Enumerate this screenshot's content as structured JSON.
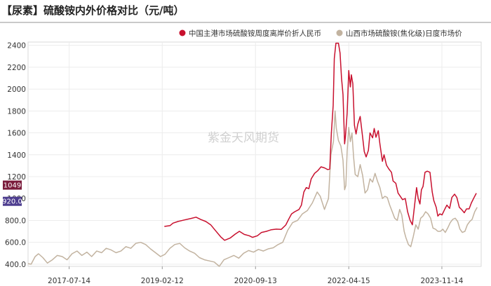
{
  "title": "【尿素】硫酸铵内外价格对比（元/吨）",
  "watermark": "紫金天风期货",
  "chart_data": {
    "type": "line",
    "title": "【尿素】硫酸铵内外价格对比（元/吨）",
    "xlabel": "",
    "ylabel": "",
    "ylim": [
      380,
      2430
    ],
    "yticks": [
      400,
      600,
      800,
      1000,
      1200,
      1400,
      1600,
      1800,
      2000,
      2200,
      2400
    ],
    "ytick_labels": [
      "400.0",
      "600.0",
      "800.0",
      "1000",
      "1200",
      "1400",
      "1600",
      "1800",
      "2000",
      "2200",
      "2400"
    ],
    "xlim": [
      "2016-11-01",
      "2024-07-15"
    ],
    "xticks": [
      "2017-07-14",
      "2019-02-12",
      "2020-09-13",
      "2022-04-15",
      "2023-11-14"
    ],
    "grid": true,
    "legend_position": "top-right",
    "last_value_labels": [
      {
        "series": "中国主港市场硫酸铵周度离岸价折人民币",
        "value": "1049",
        "color": "#7b1c3c"
      },
      {
        "series": "山西市场硫酸铵(焦化级)日度市场价",
        "value": "920.0",
        "color": "#4d3d8f"
      }
    ],
    "series": [
      {
        "name": "中国主港市场硫酸铵周度离岸价折人民币",
        "color": "#c8102e",
        "points": [
          [
            "2019-02-25",
            745
          ],
          [
            "2019-04-01",
            752
          ],
          [
            "2019-04-20",
            775
          ],
          [
            "2019-05-20",
            790
          ],
          [
            "2019-07-01",
            805
          ],
          [
            "2019-08-10",
            818
          ],
          [
            "2019-09-10",
            830
          ],
          [
            "2019-10-10",
            808
          ],
          [
            "2019-11-10",
            790
          ],
          [
            "2019-12-10",
            760
          ],
          [
            "2020-01-10",
            705
          ],
          [
            "2020-02-10",
            650
          ],
          [
            "2020-03-05",
            618
          ],
          [
            "2020-04-10",
            640
          ],
          [
            "2020-05-10",
            675
          ],
          [
            "2020-06-05",
            700
          ],
          [
            "2020-07-05",
            672
          ],
          [
            "2020-08-05",
            660
          ],
          [
            "2020-08-25",
            645
          ],
          [
            "2020-09-25",
            660
          ],
          [
            "2020-10-20",
            690
          ],
          [
            "2020-11-20",
            700
          ],
          [
            "2020-12-20",
            715
          ],
          [
            "2021-01-20",
            720
          ],
          [
            "2021-02-20",
            718
          ],
          [
            "2021-03-20",
            758
          ],
          [
            "2021-04-10",
            820
          ],
          [
            "2021-04-25",
            860
          ],
          [
            "2021-05-15",
            880
          ],
          [
            "2021-06-10",
            900
          ],
          [
            "2021-06-25",
            940
          ],
          [
            "2021-07-10",
            1060
          ],
          [
            "2021-07-25",
            1100
          ],
          [
            "2021-08-10",
            1090
          ],
          [
            "2021-08-25",
            1180
          ],
          [
            "2021-09-15",
            1230
          ],
          [
            "2021-10-05",
            1255
          ],
          [
            "2021-10-25",
            1290
          ],
          [
            "2021-11-15",
            1280
          ],
          [
            "2021-12-05",
            1265
          ],
          [
            "2021-12-18",
            1270
          ],
          [
            "2021-12-28",
            1600
          ],
          [
            "2022-01-08",
            1850
          ],
          [
            "2022-01-15",
            2280
          ],
          [
            "2022-01-25",
            2420
          ],
          [
            "2022-02-10",
            2420
          ],
          [
            "2022-02-20",
            2330
          ],
          [
            "2022-03-01",
            2100
          ],
          [
            "2022-03-10",
            1950
          ],
          [
            "2022-03-20",
            1500
          ],
          [
            "2022-03-25",
            1560
          ],
          [
            "2022-04-05",
            1780
          ],
          [
            "2022-04-15",
            2170
          ],
          [
            "2022-04-25",
            2020
          ],
          [
            "2022-05-01",
            2130
          ],
          [
            "2022-05-10",
            2050
          ],
          [
            "2022-05-20",
            1670
          ],
          [
            "2022-05-30",
            1590
          ],
          [
            "2022-06-10",
            1680
          ],
          [
            "2022-06-25",
            1750
          ],
          [
            "2022-07-10",
            1560
          ],
          [
            "2022-07-20",
            1430
          ],
          [
            "2022-08-01",
            1380
          ],
          [
            "2022-08-15",
            1440
          ],
          [
            "2022-08-25",
            1600
          ],
          [
            "2022-09-10",
            1555
          ],
          [
            "2022-09-20",
            1640
          ],
          [
            "2022-10-01",
            1560
          ],
          [
            "2022-10-15",
            1620
          ],
          [
            "2022-10-25",
            1500
          ],
          [
            "2022-11-10",
            1340
          ],
          [
            "2022-11-20",
            1400
          ],
          [
            "2022-12-05",
            1305
          ],
          [
            "2022-12-20",
            1270
          ],
          [
            "2023-01-05",
            1240
          ],
          [
            "2023-01-15",
            1160
          ],
          [
            "2023-02-01",
            1140
          ],
          [
            "2023-02-15",
            1050
          ],
          [
            "2023-03-01",
            1020
          ],
          [
            "2023-03-15",
            990
          ],
          [
            "2023-04-01",
            1000
          ],
          [
            "2023-04-15",
            880
          ],
          [
            "2023-05-01",
            800
          ],
          [
            "2023-05-15",
            760
          ],
          [
            "2023-06-01",
            980
          ],
          [
            "2023-06-10",
            1100
          ],
          [
            "2023-06-20",
            1000
          ],
          [
            "2023-07-01",
            950
          ],
          [
            "2023-07-10",
            1080
          ],
          [
            "2023-07-20",
            1110
          ],
          [
            "2023-08-01",
            1240
          ],
          [
            "2023-08-15",
            1250
          ],
          [
            "2023-09-01",
            1240
          ],
          [
            "2023-09-15",
            1060
          ],
          [
            "2023-09-25",
            980
          ],
          [
            "2023-10-10",
            920
          ],
          [
            "2023-10-20",
            840
          ],
          [
            "2023-11-01",
            860
          ],
          [
            "2023-11-15",
            850
          ],
          [
            "2023-12-01",
            900
          ],
          [
            "2023-12-15",
            940
          ],
          [
            "2024-01-01",
            910
          ],
          [
            "2024-01-15",
            1010
          ],
          [
            "2024-02-01",
            1040
          ],
          [
            "2024-02-15",
            1010
          ],
          [
            "2024-03-01",
            920
          ],
          [
            "2024-03-15",
            900
          ],
          [
            "2024-04-01",
            870
          ],
          [
            "2024-04-15",
            905
          ],
          [
            "2024-05-01",
            905
          ],
          [
            "2024-05-15",
            960
          ],
          [
            "2024-06-01",
            1010
          ],
          [
            "2024-06-15",
            1049
          ]
        ]
      },
      {
        "name": "山西市场硫酸铵(焦化级)日度市场价",
        "color": "#c2b3a0",
        "points": [
          [
            "2016-11-01",
            405
          ],
          [
            "2016-11-20",
            400
          ],
          [
            "2016-12-15",
            470
          ],
          [
            "2017-01-05",
            495
          ],
          [
            "2017-02-01",
            460
          ],
          [
            "2017-03-01",
            410
          ],
          [
            "2017-04-01",
            440
          ],
          [
            "2017-05-01",
            480
          ],
          [
            "2017-06-01",
            470
          ],
          [
            "2017-07-01",
            440
          ],
          [
            "2017-08-01",
            495
          ],
          [
            "2017-09-01",
            520
          ],
          [
            "2017-10-01",
            480
          ],
          [
            "2017-11-01",
            510
          ],
          [
            "2017-12-01",
            470
          ],
          [
            "2018-01-01",
            520
          ],
          [
            "2018-02-01",
            505
          ],
          [
            "2018-03-01",
            545
          ],
          [
            "2018-04-01",
            530
          ],
          [
            "2018-05-01",
            505
          ],
          [
            "2018-06-01",
            520
          ],
          [
            "2018-07-01",
            560
          ],
          [
            "2018-08-01",
            545
          ],
          [
            "2018-09-01",
            590
          ],
          [
            "2018-10-01",
            600
          ],
          [
            "2018-11-01",
            580
          ],
          [
            "2018-12-01",
            540
          ],
          [
            "2019-01-01",
            505
          ],
          [
            "2019-02-01",
            470
          ],
          [
            "2019-03-01",
            490
          ],
          [
            "2019-04-01",
            545
          ],
          [
            "2019-05-01",
            580
          ],
          [
            "2019-06-01",
            590
          ],
          [
            "2019-07-01",
            550
          ],
          [
            "2019-08-01",
            520
          ],
          [
            "2019-09-01",
            500
          ],
          [
            "2019-10-01",
            460
          ],
          [
            "2019-11-01",
            440
          ],
          [
            "2019-12-01",
            430
          ],
          [
            "2020-01-01",
            420
          ],
          [
            "2020-02-01",
            380
          ],
          [
            "2020-03-01",
            440
          ],
          [
            "2020-04-01",
            460
          ],
          [
            "2020-05-01",
            480
          ],
          [
            "2020-06-01",
            455
          ],
          [
            "2020-07-01",
            500
          ],
          [
            "2020-08-01",
            525
          ],
          [
            "2020-09-01",
            510
          ],
          [
            "2020-10-01",
            535
          ],
          [
            "2020-11-01",
            520
          ],
          [
            "2020-12-01",
            540
          ],
          [
            "2021-01-01",
            550
          ],
          [
            "2021-02-01",
            580
          ],
          [
            "2021-03-01",
            600
          ],
          [
            "2021-04-01",
            710
          ],
          [
            "2021-05-01",
            780
          ],
          [
            "2021-06-01",
            800
          ],
          [
            "2021-07-01",
            860
          ],
          [
            "2021-08-01",
            890
          ],
          [
            "2021-09-01",
            960
          ],
          [
            "2021-10-01",
            1060
          ],
          [
            "2021-10-20",
            1020
          ],
          [
            "2021-11-15",
            900
          ],
          [
            "2021-12-10",
            1000
          ],
          [
            "2021-12-25",
            1400
          ],
          [
            "2022-01-10",
            1520
          ],
          [
            "2022-01-20",
            1800
          ],
          [
            "2022-01-28",
            1640
          ],
          [
            "2022-02-10",
            1530
          ],
          [
            "2022-02-25",
            1480
          ],
          [
            "2022-03-10",
            1350
          ],
          [
            "2022-03-20",
            1080
          ],
          [
            "2022-03-28",
            1120
          ],
          [
            "2022-04-05",
            1430
          ],
          [
            "2022-04-15",
            1650
          ],
          [
            "2022-04-25",
            1520
          ],
          [
            "2022-05-05",
            1600
          ],
          [
            "2022-05-15",
            1380
          ],
          [
            "2022-05-25",
            1220
          ],
          [
            "2022-06-10",
            1200
          ],
          [
            "2022-06-25",
            1310
          ],
          [
            "2022-07-10",
            1210
          ],
          [
            "2022-07-25",
            1050
          ],
          [
            "2022-08-10",
            1080
          ],
          [
            "2022-08-25",
            1180
          ],
          [
            "2022-09-10",
            1150
          ],
          [
            "2022-09-25",
            1230
          ],
          [
            "2022-10-10",
            1160
          ],
          [
            "2022-10-25",
            1100
          ],
          [
            "2022-11-10",
            1000
          ],
          [
            "2022-11-25",
            1020
          ],
          [
            "2022-12-10",
            1010
          ],
          [
            "2022-12-25",
            940
          ],
          [
            "2023-01-10",
            880
          ],
          [
            "2023-01-25",
            820
          ],
          [
            "2023-02-10",
            800
          ],
          [
            "2023-02-25",
            900
          ],
          [
            "2023-03-10",
            850
          ],
          [
            "2023-03-25",
            700
          ],
          [
            "2023-04-05",
            640
          ],
          [
            "2023-04-20",
            580
          ],
          [
            "2023-05-05",
            560
          ],
          [
            "2023-05-20",
            650
          ],
          [
            "2023-06-05",
            760
          ],
          [
            "2023-06-20",
            720
          ],
          [
            "2023-07-05",
            820
          ],
          [
            "2023-07-20",
            840
          ],
          [
            "2023-08-05",
            880
          ],
          [
            "2023-08-20",
            860
          ],
          [
            "2023-09-05",
            820
          ],
          [
            "2023-09-20",
            730
          ],
          [
            "2023-10-05",
            720
          ],
          [
            "2023-10-20",
            700
          ],
          [
            "2023-11-05",
            700
          ],
          [
            "2023-11-20",
            720
          ],
          [
            "2023-12-05",
            690
          ],
          [
            "2023-12-20",
            730
          ],
          [
            "2024-01-05",
            780
          ],
          [
            "2024-01-20",
            810
          ],
          [
            "2024-02-05",
            820
          ],
          [
            "2024-02-20",
            790
          ],
          [
            "2024-03-05",
            720
          ],
          [
            "2024-03-20",
            690
          ],
          [
            "2024-04-05",
            700
          ],
          [
            "2024-04-20",
            760
          ],
          [
            "2024-05-05",
            790
          ],
          [
            "2024-05-20",
            810
          ],
          [
            "2024-06-05",
            880
          ],
          [
            "2024-06-20",
            920
          ]
        ]
      }
    ]
  }
}
